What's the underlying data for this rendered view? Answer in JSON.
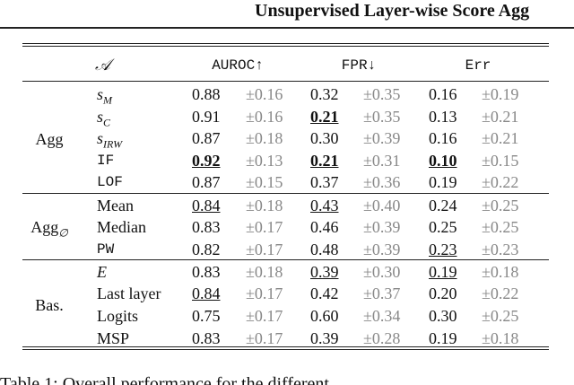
{
  "header": {
    "title": "Unsupervised Layer-wise Score Agg"
  },
  "table": {
    "columns": {
      "method": "𝒜",
      "metrics": [
        "AUROC↑",
        "FPR↓",
        "Err"
      ]
    },
    "groups": [
      {
        "label": {
          "base": "Agg"
        },
        "rows": [
          {
            "method": {
              "base": "s",
              "sub": "M"
            },
            "cells": [
              "0.88",
              "±0.16",
              "0.32",
              "±0.35",
              "0.16",
              "±0.19"
            ]
          },
          {
            "method": {
              "base": "s",
              "sub": "C"
            },
            "cells": [
              "0.91",
              "±0.16",
              "0.21",
              "±0.35",
              "0.13",
              "±0.21"
            ]
          },
          {
            "method": {
              "base": "s",
              "sub": "IRW"
            },
            "cells": [
              "0.87",
              "±0.18",
              "0.30",
              "±0.39",
              "0.16",
              "±0.21"
            ]
          },
          {
            "method": {
              "base": "IF"
            },
            "cells": [
              "0.92",
              "±0.13",
              "0.21",
              "±0.31",
              "0.10",
              "±0.15"
            ]
          },
          {
            "method": {
              "base": "LOF"
            },
            "cells": [
              "0.87",
              "±0.15",
              "0.37",
              "±0.36",
              "0.19",
              "±0.22"
            ]
          }
        ]
      },
      {
        "label": {
          "base": "Agg",
          "sub": "∅"
        },
        "rows": [
          {
            "method": {
              "base": "Mean"
            },
            "cells": [
              "0.84",
              "±0.18",
              "0.43",
              "±0.40",
              "0.24",
              "±0.25"
            ]
          },
          {
            "method": {
              "base": "Median"
            },
            "cells": [
              "0.83",
              "±0.17",
              "0.46",
              "±0.39",
              "0.25",
              "±0.25"
            ]
          },
          {
            "method": {
              "base": "PW"
            },
            "cells": [
              "0.82",
              "±0.17",
              "0.48",
              "±0.39",
              "0.23",
              "±0.23"
            ]
          }
        ]
      },
      {
        "label": {
          "base": "Bas."
        },
        "rows": [
          {
            "method": {
              "base": "E"
            },
            "cells": [
              "0.83",
              "±0.18",
              "0.39",
              "±0.30",
              "0.19",
              "±0.18"
            ]
          },
          {
            "method": {
              "base": "Last layer"
            },
            "cells": [
              "0.84",
              "±0.17",
              "0.42",
              "±0.37",
              "0.20",
              "±0.22"
            ]
          },
          {
            "method": {
              "base": "Logits"
            },
            "cells": [
              "0.75",
              "±0.17",
              "0.60",
              "±0.34",
              "0.30",
              "±0.25"
            ]
          },
          {
            "method": {
              "base": "MSP"
            },
            "cells": [
              "0.83",
              "±0.17",
              "0.39",
              "±0.28",
              "0.19",
              "±0.18"
            ]
          }
        ]
      }
    ]
  },
  "caption": "Table 1: Overall performance for the different"
}
